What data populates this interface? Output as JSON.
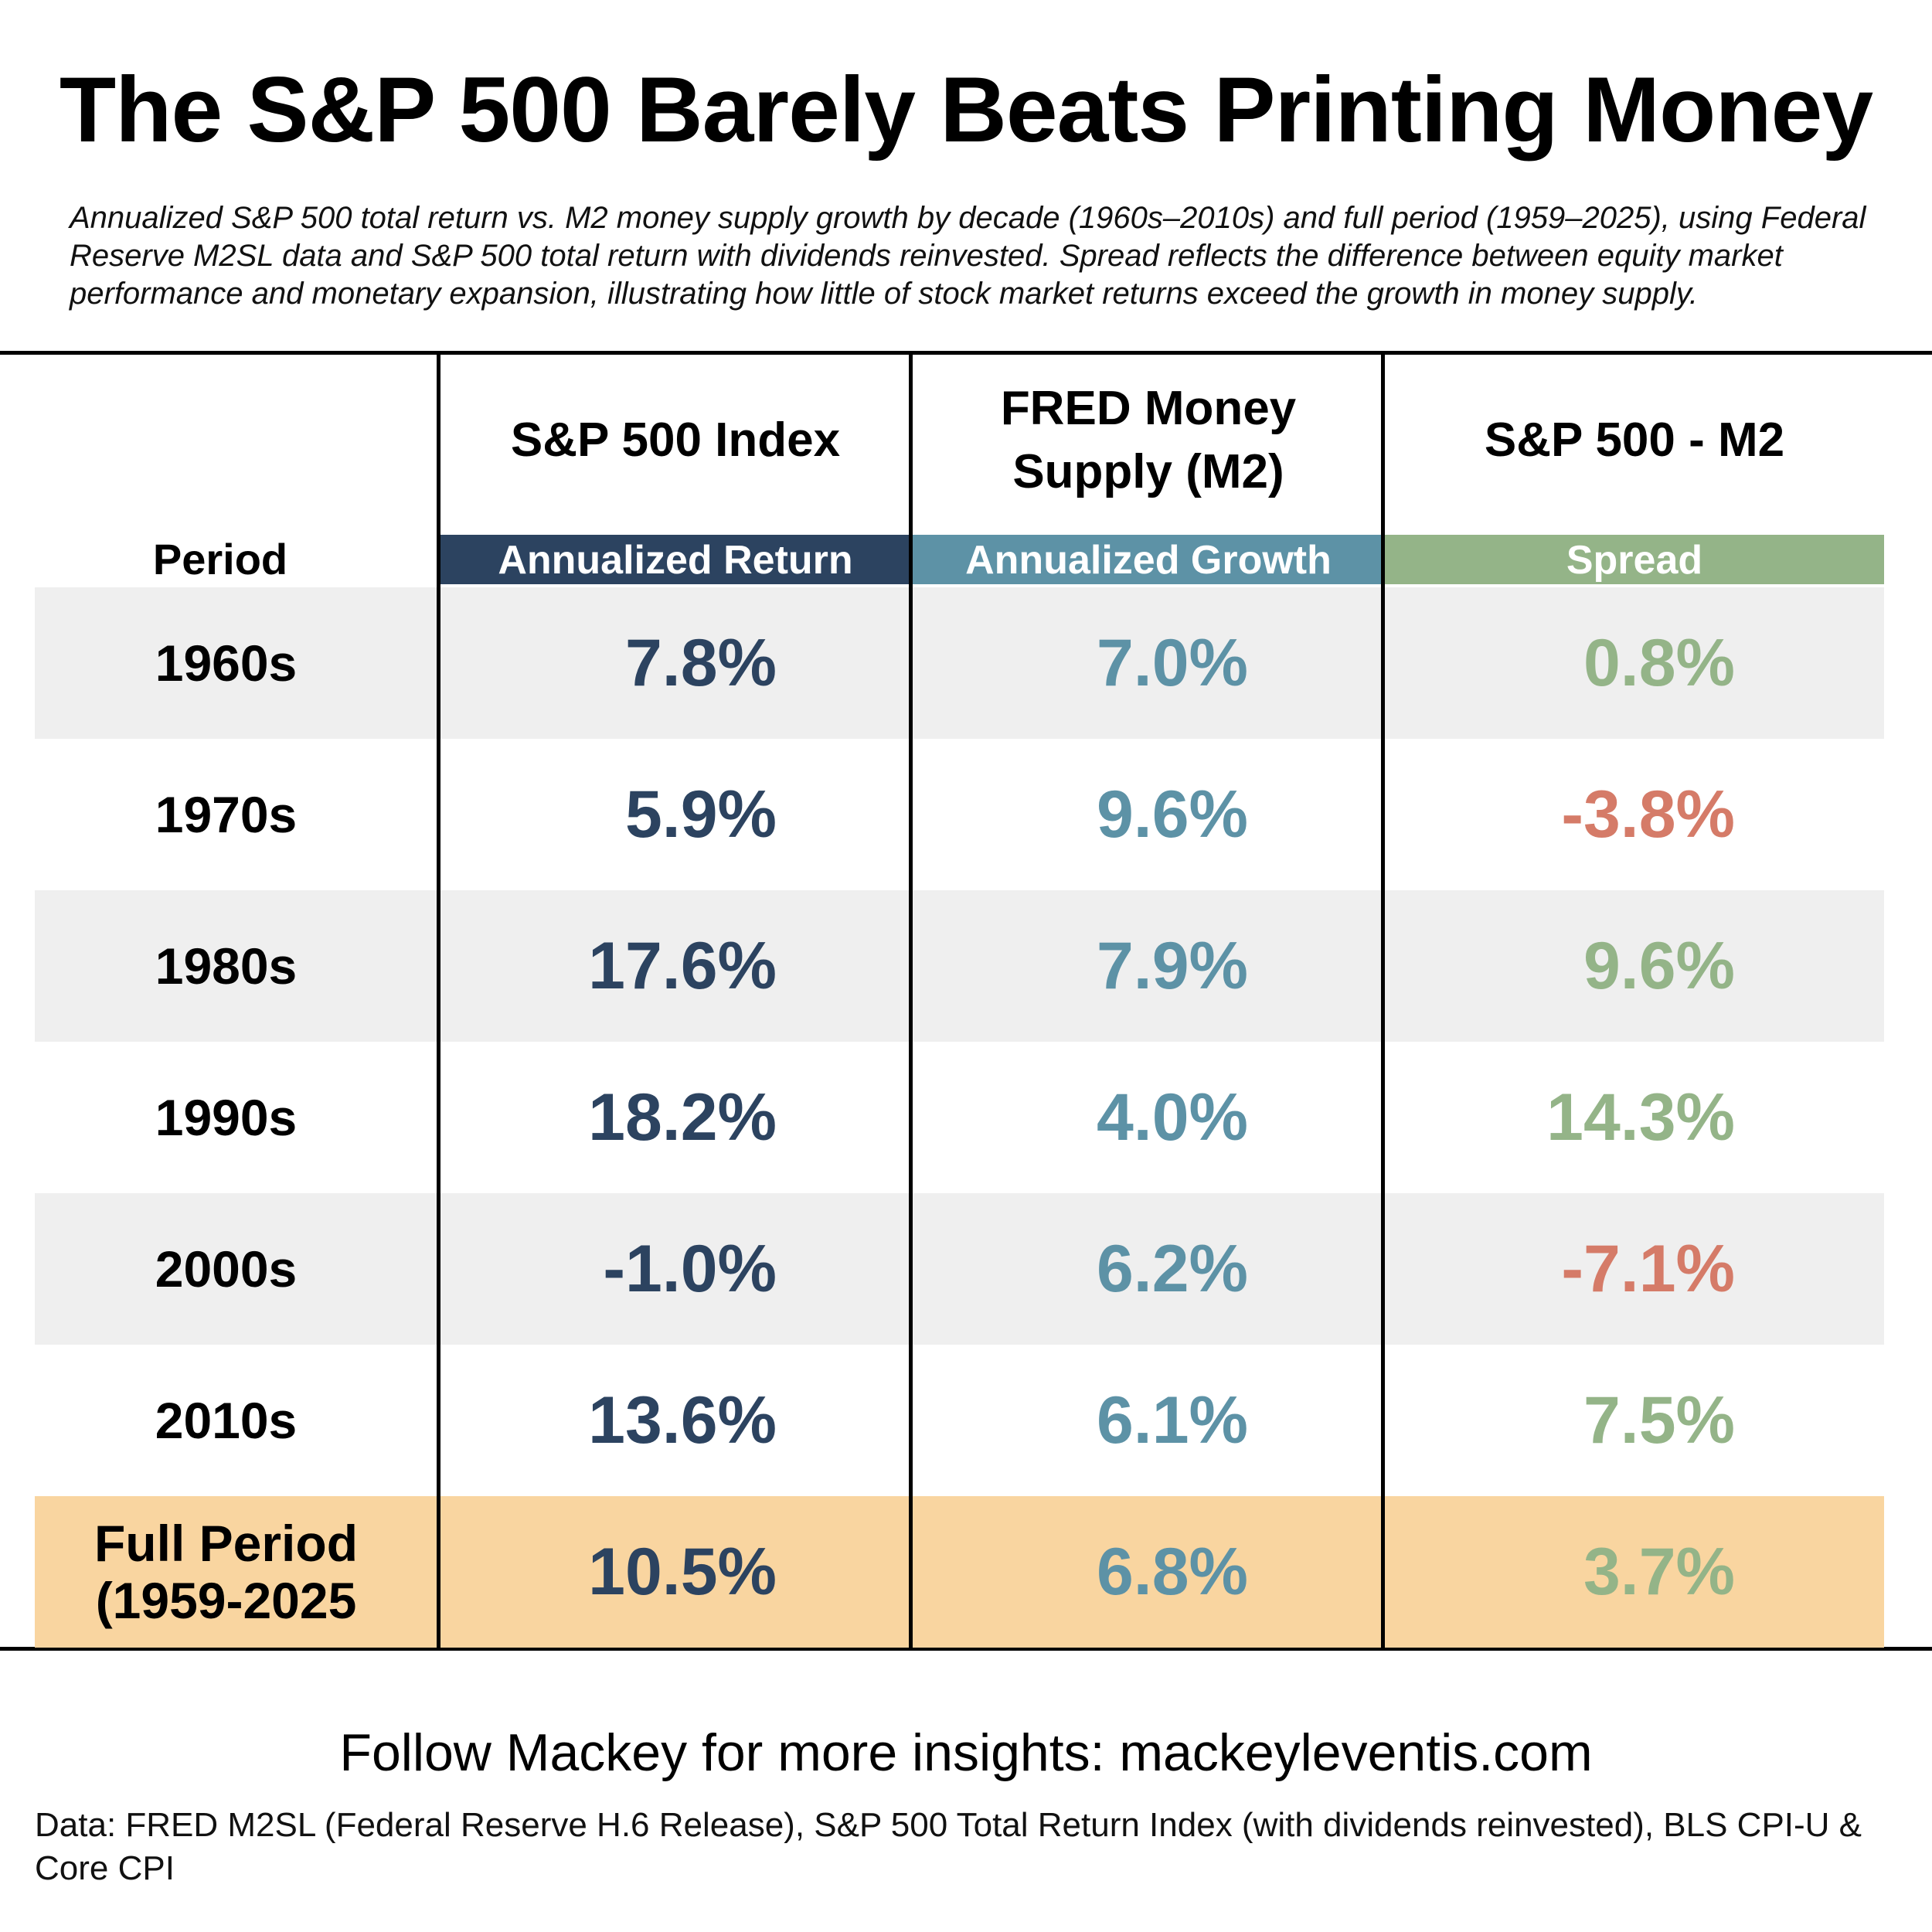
{
  "colors": {
    "sp500": "#2c4360",
    "m2": "#5d92a6",
    "spread_positive": "#94b488",
    "spread_negative": "#d57b68",
    "row_shade": "#efefef",
    "full_period_bg": "#f9d5a0"
  },
  "chart_data": {
    "type": "table",
    "title": "The S&P 500 Barely Beats Printing Money",
    "subtitle": "Annualized S&P 500 total return vs. M2 money supply growth by decade (1960s–2010s) and full period (1959–2025), using Federal Reserve M2SL data and S&P 500 total return with dividends reinvested. Spread reflects the difference between equity market performance and monetary expansion, illustrating how little of stock market returns exceed the growth in money supply.",
    "period_header": "Period",
    "columns": [
      {
        "header": "S&P 500 Index",
        "subheader": "Annualized Return"
      },
      {
        "header": "FRED Money Supply (M2)",
        "subheader": "Annualized Growth"
      },
      {
        "header": "S&P 500 - M2",
        "subheader": "Spread"
      }
    ],
    "rows": [
      {
        "period": "1960s",
        "sp500": "7.8%",
        "m2": "7.0%",
        "spread": "0.8%",
        "spread_sign": "positive"
      },
      {
        "period": "1970s",
        "sp500": "5.9%",
        "m2": "9.6%",
        "spread": "-3.8%",
        "spread_sign": "negative"
      },
      {
        "period": "1980s",
        "sp500": "17.6%",
        "m2": "7.9%",
        "spread": "9.6%",
        "spread_sign": "positive"
      },
      {
        "period": "1990s",
        "sp500": "18.2%",
        "m2": "4.0%",
        "spread": "14.3%",
        "spread_sign": "positive"
      },
      {
        "period": "2000s",
        "sp500": "-1.0%",
        "m2": "6.2%",
        "spread": "-7.1%",
        "spread_sign": "negative"
      },
      {
        "period": "2010s",
        "sp500": "13.6%",
        "m2": "6.1%",
        "spread": "7.5%",
        "spread_sign": "positive"
      },
      {
        "period": "Full Period (1959-2025",
        "sp500": "10.5%",
        "m2": "6.8%",
        "spread": "3.7%",
        "spread_sign": "positive"
      }
    ]
  },
  "footer": {
    "cta": "Follow Mackey for more insights: mackeyleventis.com",
    "source": "Data: FRED M2SL (Federal Reserve H.6 Release), S&P 500 Total Return Index (with dividends reinvested), BLS CPI-U & Core CPI"
  }
}
